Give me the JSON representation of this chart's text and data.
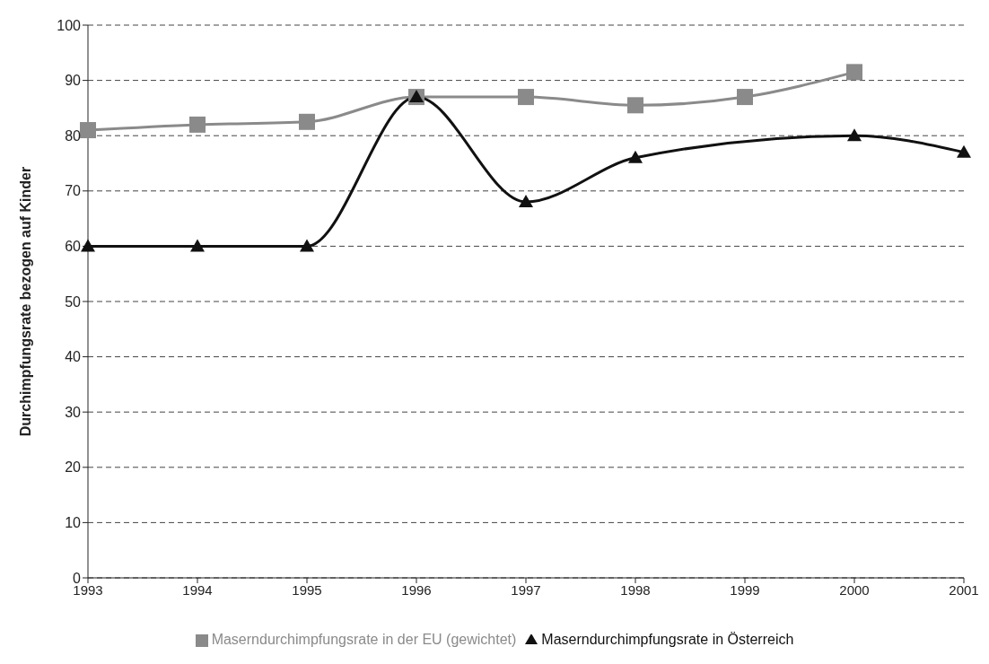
{
  "chart_data": {
    "type": "line",
    "ylabel": "Durchimpfungsrate bezogen auf Kinder",
    "categories": [
      "1993",
      "1994",
      "1995",
      "1996",
      "1997",
      "1998",
      "1999",
      "2000",
      "2001"
    ],
    "series": [
      {
        "name": "Maserndurchimpfungsrate in der EU (gewichtet)",
        "color": "#8a8a8a",
        "marker": "square",
        "values": [
          81,
          82,
          82.5,
          87,
          87,
          85.5,
          87,
          91.5,
          null
        ]
      },
      {
        "name": "Maserndurchimpfungsrate in Österreich",
        "color": "#111111",
        "marker": "triangle",
        "values": [
          60,
          60,
          60,
          87,
          68,
          76,
          null,
          80,
          77
        ]
      }
    ],
    "ylim": [
      0,
      100
    ],
    "yticks": [
      0,
      10,
      20,
      30,
      40,
      50,
      60,
      70,
      80,
      90,
      100
    ],
    "grid": "y",
    "legend": "bottom"
  }
}
